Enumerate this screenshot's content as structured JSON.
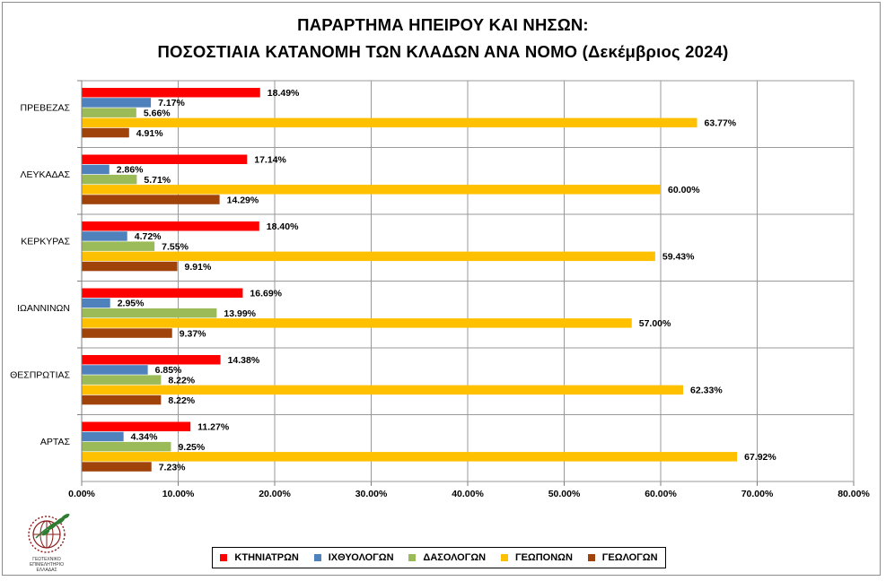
{
  "title_line1": "ΠΑΡΑΡΤΗΜΑ ΗΠΕΙΡΟΥ ΚΑΙ ΝΗΣΩΝ:",
  "title_line2": "ΠΟΣΟΣΤΙΑΙΑ ΚΑΤΑΝΟΜΗ ΤΩΝ ΚΛΑΔΩΝ ΑΝΑ ΝΟΜΟ (Δεκέμβριος 2024)",
  "logo": {
    "line1": "ΓΕΩΤΕΧΝΙΚΟ",
    "line2": "ΕΠΙΜΕΛΗΤΗΡΙΟ",
    "line3": "ΕΛΛΑΔΑΣ"
  },
  "chart_data": {
    "type": "bar",
    "orientation": "horizontal",
    "title": "ΠΑΡΑΡΤΗΜΑ ΗΠΕΙΡΟΥ ΚΑΙ ΝΗΣΩΝ: ΠΟΣΟΣΤΙΑΙΑ ΚΑΤΑΝΟΜΗ ΤΩΝ ΚΛΑΔΩΝ ΑΝΑ ΝΟΜΟ (Δεκέμβριος 2024)",
    "categories": [
      "ΠΡΕΒΕΖΑΣ",
      "ΛΕΥΚΑΔΑΣ",
      "ΚΕΡΚΥΡΑΣ",
      "ΙΩΑΝΝΙΝΩΝ",
      "ΘΕΣΠΡΩΤΙΑΣ",
      "ΑΡΤΑΣ"
    ],
    "series": [
      {
        "name": "ΚΤΗΝΙΑΤΡΩΝ",
        "color": "#ff0000",
        "values": [
          18.49,
          17.14,
          18.4,
          16.69,
          14.38,
          11.27
        ]
      },
      {
        "name": "ΙΧΘΥΟΛΟΓΩΝ",
        "color": "#4f81bd",
        "values": [
          7.17,
          2.86,
          4.72,
          2.95,
          6.85,
          4.34
        ]
      },
      {
        "name": "ΔΑΣΟΛΟΓΩΝ",
        "color": "#9bbb59",
        "values": [
          5.66,
          5.71,
          7.55,
          13.99,
          8.22,
          9.25
        ]
      },
      {
        "name": "ΓΕΩΠΟΝΩΝ",
        "color": "#ffc000",
        "values": [
          63.77,
          60.0,
          59.43,
          57.0,
          62.33,
          67.92
        ]
      },
      {
        "name": "ΓΕΩΛΟΓΩΝ",
        "color": "#a0430a",
        "values": [
          4.91,
          14.29,
          9.91,
          9.37,
          8.22,
          7.23
        ]
      }
    ],
    "xlim": [
      0,
      80
    ],
    "xticks": [
      0,
      10,
      20,
      30,
      40,
      50,
      60,
      70,
      80
    ],
    "xtick_labels": [
      "0.00%",
      "10.00%",
      "20.00%",
      "30.00%",
      "40.00%",
      "50.00%",
      "60.00%",
      "70.00%",
      "80.00%"
    ],
    "xlabel": "",
    "ylabel": "",
    "value_format": "percent_2dp",
    "grid": true,
    "legend": "bottom"
  }
}
